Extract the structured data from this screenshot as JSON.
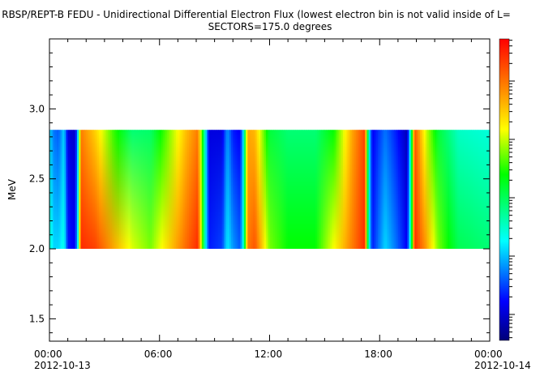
{
  "title": "RBSP/REPT-B  FEDU - Unidirectional Differential Electron Flux (lowest electron bin is not valid inside of L=",
  "subtitle": "SECTORS=175.0 degrees",
  "chart_data": {
    "type": "heatmap",
    "title": "RBSP/REPT-B  FEDU - Unidirectional Differential Electron Flux (lowest electron bin is not valid inside of L=",
    "subtitle": "SECTORS=175.0 degrees",
    "ylabel": "MeV",
    "ylim": [
      1.34,
      3.5
    ],
    "yticks": [
      1.5,
      2.0,
      2.5,
      3.0
    ],
    "ytick_labels": [
      "1.5",
      "2.0",
      "2.5",
      "3.0"
    ],
    "xlim_hours": [
      0,
      24
    ],
    "xticks_hours": [
      0,
      6,
      12,
      18,
      24
    ],
    "xtick_labels": [
      [
        "00:00",
        "2012-10-13"
      ],
      [
        "06:00",
        ""
      ],
      [
        "12:00",
        ""
      ],
      [
        "18:00",
        ""
      ],
      [
        "00:00",
        "2012-10-14"
      ]
    ],
    "band_energy_range_mev": [
      2.0,
      2.85
    ],
    "colorscale": "rainbow (dark blue = low flux, red = high flux), logarithmic",
    "series": [
      {
        "hour": 0.0,
        "top": 0.3,
        "bottom": 0.38
      },
      {
        "hour": 0.25,
        "top": 0.22,
        "bottom": 0.3
      },
      {
        "hour": 0.5,
        "top": 0.2,
        "bottom": 0.3
      },
      {
        "hour": 0.8,
        "top": 0.3,
        "bottom": 0.35
      },
      {
        "hour": 1.0,
        "top": 0.1,
        "bottom": 0.15
      },
      {
        "hour": 1.4,
        "top": 0.08,
        "bottom": 0.12
      },
      {
        "hour": 1.55,
        "top": 0.3,
        "bottom": 0.35
      },
      {
        "hour": 1.7,
        "top": 0.85,
        "bottom": 0.95
      },
      {
        "hour": 2.5,
        "top": 0.75,
        "bottom": 0.92
      },
      {
        "hour": 3.5,
        "top": 0.58,
        "bottom": 0.8
      },
      {
        "hour": 4.5,
        "top": 0.45,
        "bottom": 0.68
      },
      {
        "hour": 5.5,
        "top": 0.46,
        "bottom": 0.62
      },
      {
        "hour": 6.5,
        "top": 0.62,
        "bottom": 0.75
      },
      {
        "hour": 7.5,
        "top": 0.78,
        "bottom": 0.88
      },
      {
        "hour": 8.1,
        "top": 0.85,
        "bottom": 0.95
      },
      {
        "hour": 8.5,
        "top": 0.35,
        "bottom": 0.35
      },
      {
        "hour": 8.7,
        "top": 0.1,
        "bottom": 0.15
      },
      {
        "hour": 9.4,
        "top": 0.1,
        "bottom": 0.18
      },
      {
        "hour": 9.7,
        "top": 0.25,
        "bottom": 0.32
      },
      {
        "hour": 10.0,
        "top": 0.15,
        "bottom": 0.25
      },
      {
        "hour": 10.4,
        "top": 0.12,
        "bottom": 0.2
      },
      {
        "hour": 10.6,
        "top": 0.35,
        "bottom": 0.4
      },
      {
        "hour": 10.8,
        "top": 0.8,
        "bottom": 0.85
      },
      {
        "hour": 11.2,
        "top": 0.78,
        "bottom": 0.9
      },
      {
        "hour": 12.0,
        "top": 0.5,
        "bottom": 0.62
      },
      {
        "hour": 13.0,
        "top": 0.45,
        "bottom": 0.55
      },
      {
        "hour": 14.5,
        "top": 0.45,
        "bottom": 0.55
      },
      {
        "hour": 15.5,
        "top": 0.55,
        "bottom": 0.7
      },
      {
        "hour": 16.5,
        "top": 0.8,
        "bottom": 0.85
      },
      {
        "hour": 17.2,
        "top": 0.92,
        "bottom": 0.95
      },
      {
        "hour": 17.4,
        "top": 0.35,
        "bottom": 0.35
      },
      {
        "hour": 17.6,
        "top": 0.12,
        "bottom": 0.15
      },
      {
        "hour": 18.3,
        "top": 0.22,
        "bottom": 0.3
      },
      {
        "hour": 18.9,
        "top": 0.15,
        "bottom": 0.22
      },
      {
        "hour": 19.5,
        "top": 0.06,
        "bottom": 0.12
      },
      {
        "hour": 19.7,
        "top": 0.4,
        "bottom": 0.4
      },
      {
        "hour": 19.9,
        "top": 0.9,
        "bottom": 0.95
      },
      {
        "hour": 20.5,
        "top": 0.68,
        "bottom": 0.82
      },
      {
        "hour": 21.2,
        "top": 0.5,
        "bottom": 0.62
      },
      {
        "hour": 22.3,
        "top": 0.38,
        "bottom": 0.48
      },
      {
        "hour": 24.0,
        "top": 0.36,
        "bottom": 0.45
      }
    ]
  }
}
